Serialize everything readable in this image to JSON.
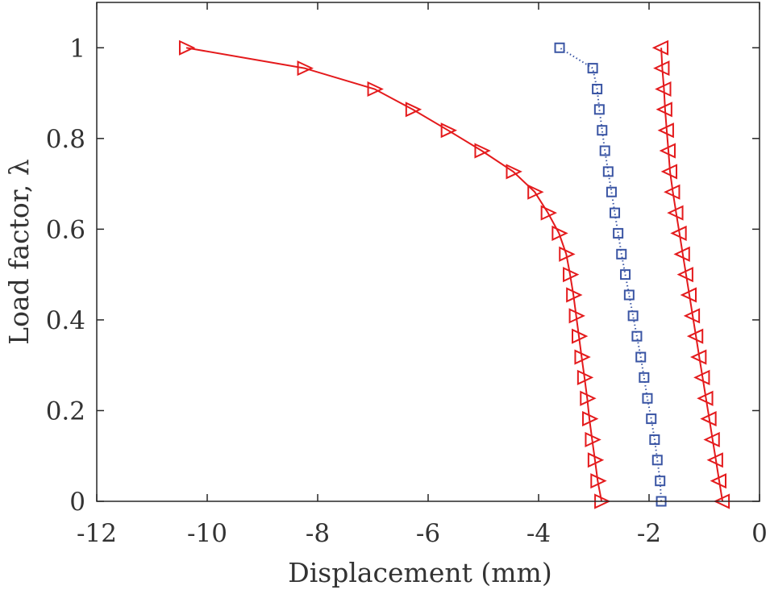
{
  "chart_data": {
    "type": "line",
    "title": "",
    "xlabel": "Displacement (mm)",
    "ylabel": "Load factor, λ",
    "xlim": [
      -12,
      0
    ],
    "ylim": [
      0,
      1.1
    ],
    "grid": false,
    "x_ticks": [
      -12,
      -10,
      -8,
      -6,
      -4,
      -2,
      0
    ],
    "x_tick_labels": [
      "-12",
      "-10",
      "-8",
      "-6",
      "-4",
      "-2",
      "0"
    ],
    "y_ticks": [
      0,
      0.2,
      0.4,
      0.6,
      0.8,
      1
    ],
    "y_tick_labels": [
      "0",
      "0.2",
      "0.4",
      "0.6",
      "0.8",
      "1"
    ],
    "series": [
      {
        "name": "series-1-red-right-triangles",
        "color": "#e41a1c",
        "line": "solid",
        "marker": "triangle-right",
        "points": [
          [
            -2.86,
            0.0
          ],
          [
            -2.93,
            0.045
          ],
          [
            -2.98,
            0.091
          ],
          [
            -3.03,
            0.136
          ],
          [
            -3.08,
            0.182
          ],
          [
            -3.12,
            0.227
          ],
          [
            -3.17,
            0.273
          ],
          [
            -3.22,
            0.318
          ],
          [
            -3.27,
            0.364
          ],
          [
            -3.32,
            0.409
          ],
          [
            -3.37,
            0.455
          ],
          [
            -3.43,
            0.5
          ],
          [
            -3.5,
            0.545
          ],
          [
            -3.63,
            0.591
          ],
          [
            -3.83,
            0.636
          ],
          [
            -4.07,
            0.682
          ],
          [
            -4.46,
            0.727
          ],
          [
            -5.03,
            0.773
          ],
          [
            -5.64,
            0.818
          ],
          [
            -6.28,
            0.864
          ],
          [
            -6.97,
            0.909
          ],
          [
            -8.24,
            0.955
          ],
          [
            -10.38,
            1.0
          ]
        ]
      },
      {
        "name": "series-2-blue-squares",
        "color": "#3a55a4",
        "line": "dotted",
        "marker": "square",
        "points": [
          [
            -1.78,
            0.0
          ],
          [
            -1.8,
            0.045
          ],
          [
            -1.85,
            0.091
          ],
          [
            -1.9,
            0.136
          ],
          [
            -1.96,
            0.182
          ],
          [
            -2.03,
            0.227
          ],
          [
            -2.09,
            0.273
          ],
          [
            -2.15,
            0.318
          ],
          [
            -2.22,
            0.364
          ],
          [
            -2.29,
            0.409
          ],
          [
            -2.36,
            0.455
          ],
          [
            -2.43,
            0.5
          ],
          [
            -2.5,
            0.545
          ],
          [
            -2.56,
            0.591
          ],
          [
            -2.62,
            0.636
          ],
          [
            -2.68,
            0.682
          ],
          [
            -2.74,
            0.727
          ],
          [
            -2.8,
            0.773
          ],
          [
            -2.85,
            0.818
          ],
          [
            -2.9,
            0.864
          ],
          [
            -2.94,
            0.909
          ],
          [
            -3.02,
            0.955
          ],
          [
            -3.62,
            1.0
          ]
        ]
      },
      {
        "name": "series-3-red-left-triangles",
        "color": "#e41a1c",
        "line": "solid",
        "marker": "triangle-left",
        "points": [
          [
            -0.67,
            0.0
          ],
          [
            -0.73,
            0.045
          ],
          [
            -0.79,
            0.091
          ],
          [
            -0.85,
            0.136
          ],
          [
            -0.91,
            0.182
          ],
          [
            -0.97,
            0.227
          ],
          [
            -1.03,
            0.273
          ],
          [
            -1.09,
            0.318
          ],
          [
            -1.15,
            0.364
          ],
          [
            -1.21,
            0.409
          ],
          [
            -1.27,
            0.455
          ],
          [
            -1.33,
            0.5
          ],
          [
            -1.39,
            0.545
          ],
          [
            -1.45,
            0.591
          ],
          [
            -1.51,
            0.636
          ],
          [
            -1.57,
            0.682
          ],
          [
            -1.62,
            0.727
          ],
          [
            -1.65,
            0.773
          ],
          [
            -1.68,
            0.818
          ],
          [
            -1.71,
            0.864
          ],
          [
            -1.73,
            0.909
          ],
          [
            -1.76,
            0.955
          ],
          [
            -1.78,
            1.0
          ]
        ]
      }
    ]
  }
}
